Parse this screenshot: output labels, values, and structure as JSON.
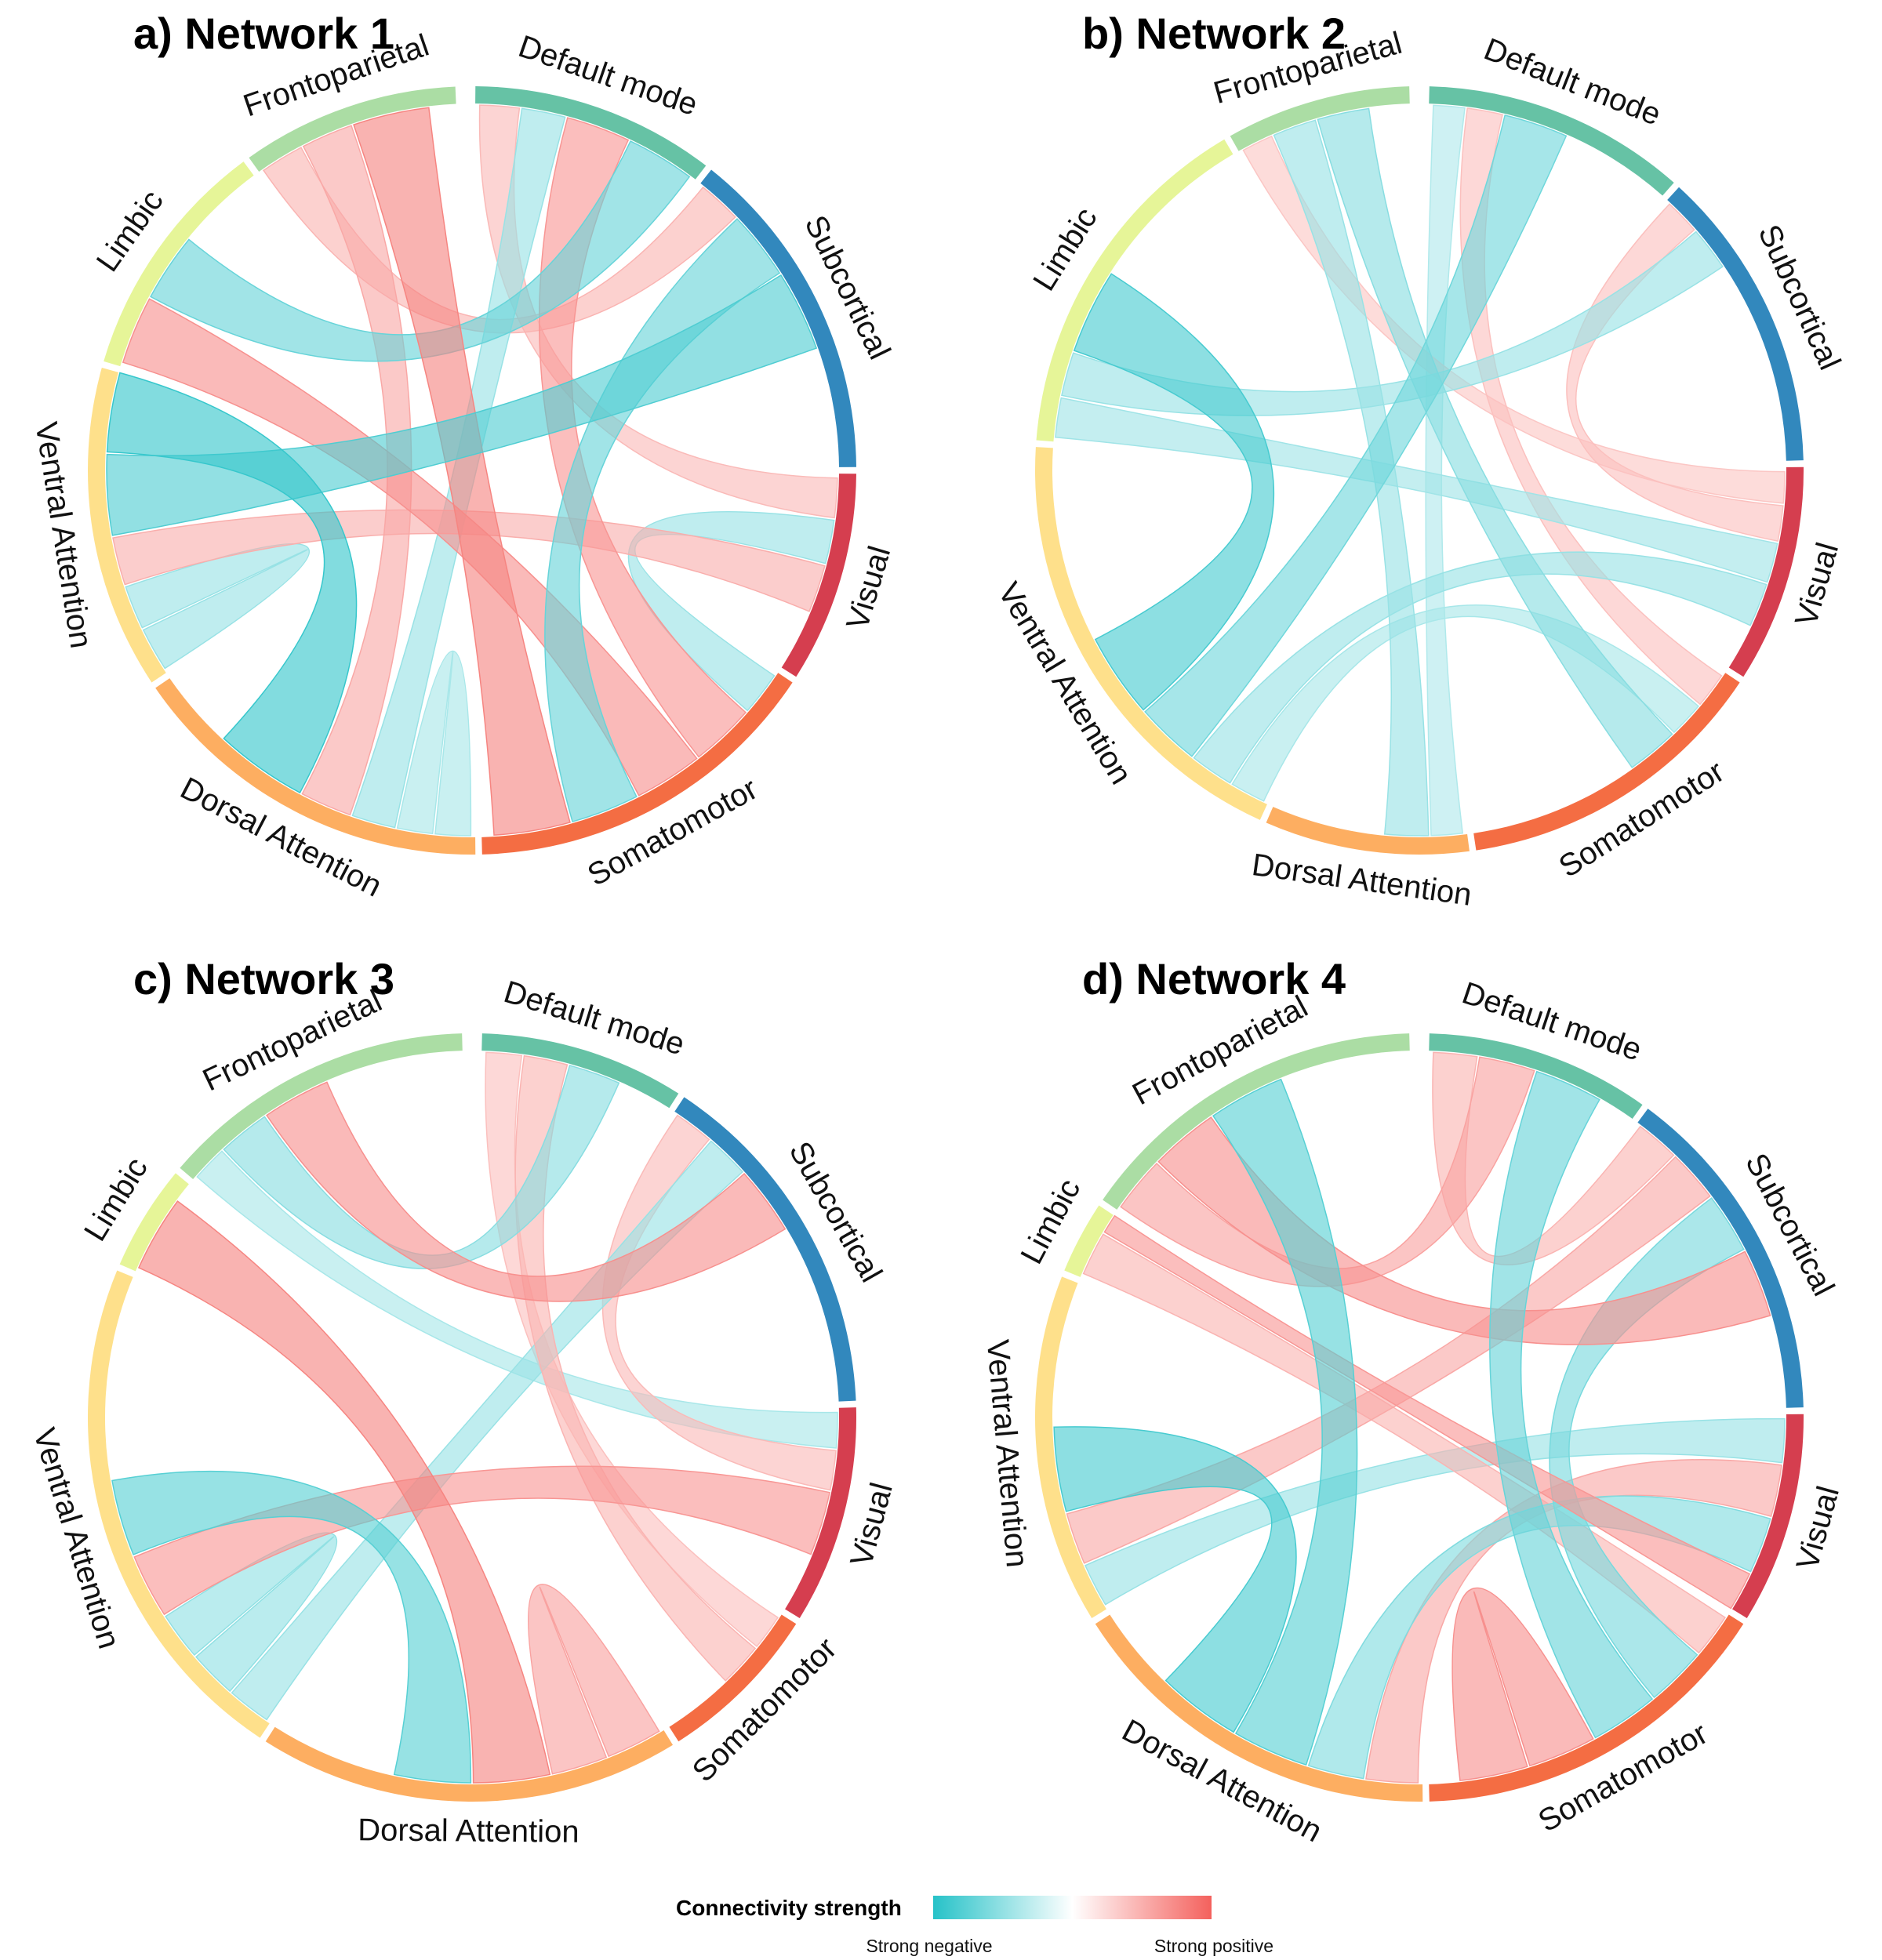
{
  "sectors": [
    "Default mode",
    "Subcortical",
    "Visual",
    "Somatomotor",
    "Dorsal Attention",
    "Ventral Attention",
    "Limbic",
    "Frontoparietal"
  ],
  "sector_colors": {
    "Default mode": "#66c2a5",
    "Subcortical": "#3288bd",
    "Visual": "#d53e4f",
    "Somatomotor": "#f46d43",
    "Dorsal Attention": "#fdae61",
    "Ventral Attention": "#fee08b",
    "Limbic": "#e6f598",
    "Frontoparietal": "#abdda4"
  },
  "colors": {
    "negative": "#26c2c8",
    "neutral": "#ffffff",
    "positive": "#f4615d"
  },
  "legend": {
    "title": "Connectivity strength",
    "negative_label": "Strong negative",
    "positive_label": "Strong positive"
  },
  "panels": [
    {
      "title": "a) Network 1",
      "sectors": [
        {
          "name": "Default mode",
          "start": 0,
          "end": 38
        },
        {
          "name": "Subcortical",
          "start": 38,
          "end": 90
        },
        {
          "name": "Visual",
          "start": 90,
          "end": 123
        },
        {
          "name": "Somatomotor",
          "start": 123,
          "end": 179
        },
        {
          "name": "Dorsal Attention",
          "start": 179,
          "end": 236
        },
        {
          "name": "Ventral Attention",
          "start": 236,
          "end": 286
        },
        {
          "name": "Limbic",
          "start": 286,
          "end": 324
        },
        {
          "name": "Frontoparietal",
          "start": 324,
          "end": 358
        }
      ],
      "links": [
        {
          "from": "Default mode",
          "to": "Somatomotor",
          "strength": 0.55
        },
        {
          "from": "Frontoparietal",
          "to": "Somatomotor",
          "strength": 0.7
        },
        {
          "from": "Frontoparietal",
          "to": "Dorsal Attention",
          "strength": 0.4
        },
        {
          "from": "Limbic",
          "to": "Somatomotor",
          "strength": 0.6
        },
        {
          "from": "Subcortical",
          "to": "Ventral Attention",
          "strength": -0.75
        },
        {
          "from": "Ventral Attention",
          "to": "Dorsal Attention",
          "strength": -0.9
        },
        {
          "from": "Limbic",
          "to": "Default mode",
          "strength": -0.6
        },
        {
          "from": "Subcortical",
          "to": "Somatomotor",
          "strength": -0.6
        },
        {
          "from": "Visual",
          "to": "Ventral Attention",
          "strength": 0.35
        },
        {
          "from": "Default mode",
          "to": "Visual",
          "strength": 0.25
        },
        {
          "from": "Frontoparietal",
          "to": "Subcortical",
          "strength": 0.3
        },
        {
          "from": "Ventral Attention",
          "to": "Ventral Attention",
          "strength": -0.3
        },
        {
          "from": "Dorsal Attention",
          "to": "Dorsal Attention",
          "strength": -0.2
        },
        {
          "from": "Default mode",
          "to": "Dorsal Attention",
          "strength": -0.3
        },
        {
          "from": "Visual",
          "to": "Somatomotor",
          "strength": -0.3
        }
      ]
    },
    {
      "title": "b) Network 2",
      "sectors": [
        {
          "name": "Default mode",
          "start": 1,
          "end": 42
        },
        {
          "name": "Subcortical",
          "start": 42,
          "end": 89
        },
        {
          "name": "Visual",
          "start": 89,
          "end": 123
        },
        {
          "name": "Somatomotor",
          "start": 123,
          "end": 172
        },
        {
          "name": "Dorsal Attention",
          "start": 172,
          "end": 204
        },
        {
          "name": "Ventral Attention",
          "start": 204,
          "end": 274
        },
        {
          "name": "Limbic",
          "start": 274,
          "end": 330
        },
        {
          "name": "Frontoparietal",
          "start": 330,
          "end": 359
        }
      ],
      "links": [
        {
          "from": "Limbic",
          "to": "Ventral Attention",
          "strength": -0.8
        },
        {
          "from": "Default mode",
          "to": "Ventral Attention",
          "strength": -0.55
        },
        {
          "from": "Frontoparietal",
          "to": "Somatomotor",
          "strength": -0.4
        },
        {
          "from": "Limbic",
          "to": "Subcortical",
          "strength": -0.3
        },
        {
          "from": "Ventral Attention",
          "to": "Visual",
          "strength": -0.3
        },
        {
          "from": "Frontoparietal",
          "to": "Dorsal Attention",
          "strength": -0.3
        },
        {
          "from": "Default mode",
          "to": "Somatomotor",
          "strength": 0.2
        },
        {
          "from": "Subcortical",
          "to": "Visual",
          "strength": 0.2
        },
        {
          "from": "Limbic",
          "to": "Visual",
          "strength": -0.25
        },
        {
          "from": "Ventral Attention",
          "to": "Somatomotor",
          "strength": -0.2
        },
        {
          "from": "Dorsal Attention",
          "to": "Default mode",
          "strength": -0.15
        },
        {
          "from": "Frontoparietal",
          "to": "Visual",
          "strength": 0.15
        }
      ]
    },
    {
      "title": "c) Network 3",
      "sectors": [
        {
          "name": "Default mode",
          "start": 1,
          "end": 33
        },
        {
          "name": "Subcortical",
          "start": 33,
          "end": 88
        },
        {
          "name": "Visual",
          "start": 88,
          "end": 122
        },
        {
          "name": "Somatomotor",
          "start": 122,
          "end": 148
        },
        {
          "name": "Dorsal Attention",
          "start": 148,
          "end": 213
        },
        {
          "name": "Ventral Attention",
          "start": 213,
          "end": 293
        },
        {
          "name": "Limbic",
          "start": 293,
          "end": 310
        },
        {
          "name": "Frontoparietal",
          "start": 310,
          "end": 359
        }
      ],
      "links": [
        {
          "from": "Frontoparietal",
          "to": "Subcortical",
          "strength": 0.6
        },
        {
          "from": "Limbic",
          "to": "Dorsal Attention",
          "strength": 0.7
        },
        {
          "from": "Ventral Attention",
          "to": "Visual",
          "strength": 0.55
        },
        {
          "from": "Ventral Attention",
          "to": "Dorsal Attention",
          "strength": -0.7
        },
        {
          "from": "Frontoparietal",
          "to": "Default mode",
          "strength": -0.4
        },
        {
          "from": "Dorsal Attention",
          "to": "Dorsal Attention",
          "strength": 0.45
        },
        {
          "from": "Subcortical",
          "to": "Ventral Attention",
          "strength": -0.3
        },
        {
          "from": "Default mode",
          "to": "Somatomotor",
          "strength": 0.3
        },
        {
          "from": "Visual",
          "to": "Subcortical",
          "strength": 0.25
        },
        {
          "from": "Frontoparietal",
          "to": "Visual",
          "strength": -0.2
        },
        {
          "from": "Ventral Attention",
          "to": "Ventral Attention",
          "strength": -0.35
        },
        {
          "from": "Somatomotor",
          "to": "Default mode",
          "strength": 0.2
        }
      ]
    },
    {
      "title": "d) Network 4",
      "sectors": [
        {
          "name": "Default mode",
          "start": 1,
          "end": 36
        },
        {
          "name": "Subcortical",
          "start": 36,
          "end": 89
        },
        {
          "name": "Visual",
          "start": 89,
          "end": 122
        },
        {
          "name": "Somatomotor",
          "start": 122,
          "end": 179
        },
        {
          "name": "Dorsal Attention",
          "start": 179,
          "end": 238
        },
        {
          "name": "Ventral Attention",
          "start": 238,
          "end": 292
        },
        {
          "name": "Limbic",
          "start": 292,
          "end": 304
        },
        {
          "name": "Frontoparietal",
          "start": 304,
          "end": 359
        }
      ],
      "links": [
        {
          "from": "Frontoparietal",
          "to": "Subcortical",
          "strength": 0.6
        },
        {
          "from": "Ventral Attention",
          "to": "Dorsal Attention",
          "strength": -0.8
        },
        {
          "from": "Frontoparietal",
          "to": "Dorsal Attention",
          "strength": -0.7
        },
        {
          "from": "Default mode",
          "to": "Somatomotor",
          "strength": -0.6
        },
        {
          "from": "Limbic",
          "to": "Visual",
          "strength": 0.55
        },
        {
          "from": "Somatomotor",
          "to": "Somatomotor",
          "strength": 0.6
        },
        {
          "from": "Dorsal Attention",
          "to": "Visual",
          "strength": -0.45
        },
        {
          "from": "Frontoparietal",
          "to": "Default mode",
          "strength": 0.45
        },
        {
          "from": "Subcortical",
          "to": "Somatomotor",
          "strength": -0.5
        },
        {
          "from": "Ventral Attention",
          "to": "Subcortical",
          "strength": 0.4
        },
        {
          "from": "Visual",
          "to": "Dorsal Attention",
          "strength": 0.4
        },
        {
          "from": "Ventral Attention",
          "to": "Visual",
          "strength": -0.3
        },
        {
          "from": "Default mode",
          "to": "Subcortical",
          "strength": 0.3
        },
        {
          "from": "Limbic",
          "to": "Somatomotor",
          "strength": 0.3
        }
      ]
    }
  ]
}
